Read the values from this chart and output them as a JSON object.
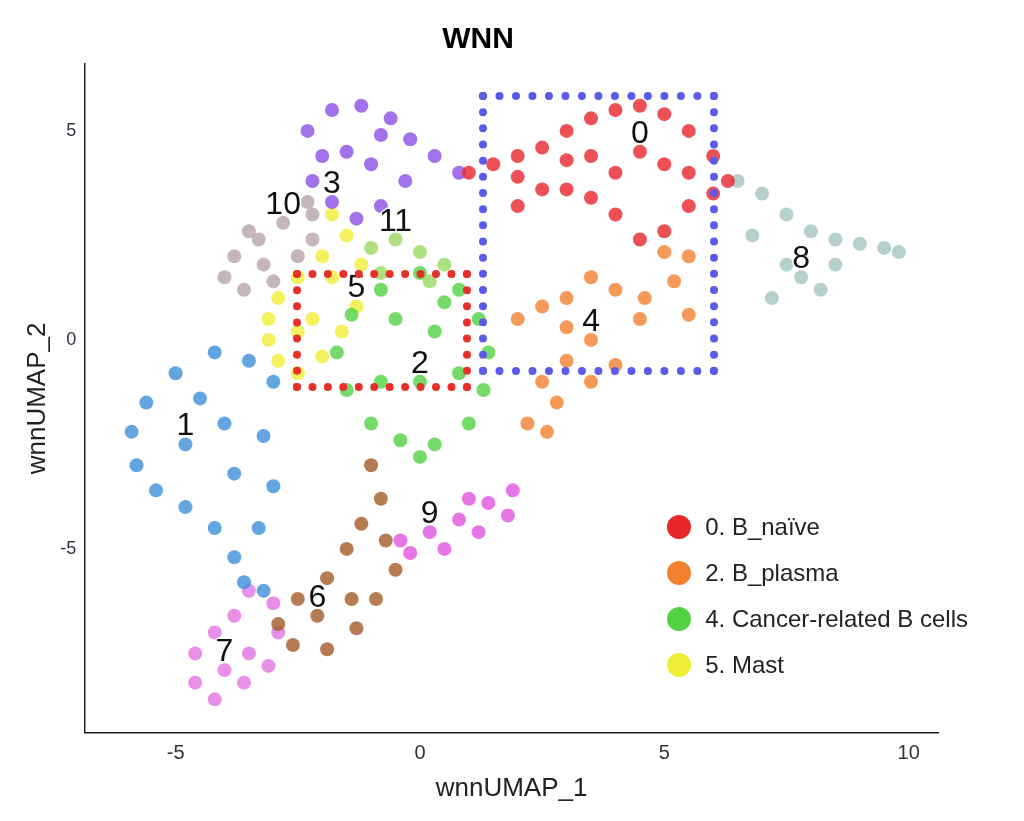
{
  "chart_data": {
    "type": "scatter",
    "title": "WNN",
    "xlabel": "wnnUMAP_1",
    "ylabel": "wnnUMAP_2",
    "xlim": [
      -6.85,
      10.6
    ],
    "ylim": [
      -9.4,
      6.6
    ],
    "xticks": [
      -5,
      0,
      5,
      10
    ],
    "yticks": [
      -5,
      0,
      5
    ],
    "grid": false,
    "legend": "bottom right",
    "marker": "circle",
    "series": [
      {
        "name": "0. B_naïve",
        "color": "#e8262a",
        "x": [
          1.0,
          1.5,
          2.0,
          2.5,
          3.0,
          3.5,
          4.0,
          4.5,
          5.0,
          5.5,
          6.0,
          6.3,
          5.5,
          5.0,
          4.5,
          4.0,
          3.5,
          3.0,
          2.5,
          2.0,
          4.5,
          5.0,
          3.5,
          4.0,
          5.5,
          3.0,
          6.0,
          2.0
        ],
        "values": [
          4.0,
          4.2,
          4.4,
          4.6,
          5.0,
          5.3,
          5.5,
          5.6,
          5.4,
          5.0,
          4.4,
          3.8,
          3.2,
          2.6,
          2.4,
          3.0,
          3.4,
          3.6,
          3.6,
          3.2,
          4.5,
          4.2,
          4.4,
          4.0,
          4.0,
          4.3,
          3.5,
          3.9
        ]
      },
      {
        "color": "#a3c4c0",
        "x": [
          6.5,
          7.0,
          7.5,
          8.0,
          8.5,
          9.0,
          9.5,
          9.8,
          7.8,
          8.2,
          7.5,
          8.5,
          6.8,
          7.2
        ],
        "values": [
          3.8,
          3.5,
          3.0,
          2.6,
          2.4,
          2.3,
          2.2,
          2.1,
          1.5,
          1.2,
          1.8,
          1.8,
          2.5,
          1.0
        ]
      },
      {
        "name": "2. B_plasma",
        "color": "#f3802f",
        "x": [
          5.0,
          5.5,
          5.2,
          4.6,
          4.0,
          3.5,
          3.0,
          2.5,
          2.0,
          3.0,
          3.5,
          4.5,
          5.5,
          3.0,
          2.5,
          2.8,
          2.2,
          2.6,
          4.0,
          3.5
        ],
        "values": [
          2.1,
          2.0,
          1.4,
          1.0,
          1.2,
          1.5,
          1.0,
          0.8,
          0.5,
          0.3,
          0.0,
          0.5,
          0.6,
          -0.5,
          -1.0,
          -1.5,
          -2.0,
          -2.2,
          -0.6,
          -1.0
        ]
      },
      {
        "color": "#8b4fe6",
        "x": [
          -2.3,
          -1.8,
          -1.2,
          -0.6,
          -0.2,
          0.3,
          0.8,
          -0.3,
          -0.8,
          -1.3,
          -1.8,
          -2.2,
          -1.5,
          -1.0,
          -0.8,
          -2.0
        ],
        "values": [
          5.0,
          5.5,
          5.6,
          5.3,
          4.8,
          4.4,
          4.0,
          3.8,
          3.2,
          2.9,
          3.3,
          3.8,
          4.5,
          4.2,
          4.9,
          4.4
        ]
      },
      {
        "color": "#b9a3ab",
        "x": [
          -2.3,
          -2.2,
          -2.8,
          -3.3,
          -3.8,
          -4.0,
          -3.6,
          -3.0,
          -2.5,
          -3.2,
          -3.5,
          -2.2
        ],
        "values": [
          3.3,
          3.0,
          2.8,
          2.4,
          2.0,
          1.5,
          1.2,
          1.4,
          2.0,
          1.8,
          2.6,
          2.4
        ]
      },
      {
        "color": "#9ad860",
        "x": [
          -1.0,
          -0.5,
          0.0,
          0.5,
          -0.8,
          0.2
        ],
        "values": [
          2.2,
          2.4,
          2.1,
          1.8,
          1.6,
          1.4
        ]
      },
      {
        "name": "4. Cancer-related B cells",
        "color": "#52d242",
        "x": [
          -0.8,
          0.0,
          0.8,
          1.2,
          1.4,
          1.3,
          1.0,
          0.3,
          -0.4,
          -1.0,
          -1.5,
          -1.7,
          -1.4,
          -0.5,
          0.3,
          0.0,
          -0.8,
          0.8,
          0.5,
          0.0
        ],
        "values": [
          1.2,
          1.6,
          1.2,
          0.5,
          -0.3,
          -1.2,
          -2.0,
          -2.5,
          -2.4,
          -2.0,
          -1.2,
          -0.3,
          0.6,
          0.5,
          0.2,
          -1.0,
          -1.0,
          -0.8,
          0.9,
          -2.8
        ]
      },
      {
        "name": "5. Mast",
        "color": "#f0ee34",
        "x": [
          -1.8,
          -1.5,
          -2.0,
          -2.5,
          -2.9,
          -3.1,
          -3.1,
          -2.9,
          -2.5,
          -2.0,
          -1.6,
          -1.3,
          -2.2,
          -2.5,
          -1.8,
          -1.2
        ],
        "values": [
          3.0,
          2.5,
          2.0,
          1.5,
          1.0,
          0.5,
          0.0,
          -0.5,
          -0.8,
          -0.4,
          0.2,
          0.8,
          0.5,
          0.2,
          1.5,
          1.8
        ]
      },
      {
        "color": "#3b8fd8",
        "x": [
          -4.2,
          -3.5,
          -3.0,
          -5.0,
          -5.6,
          -5.9,
          -5.8,
          -5.4,
          -4.8,
          -4.2,
          -3.8,
          -3.6,
          -3.2,
          -3.3,
          -3.0,
          -3.2,
          -4.0,
          -4.8,
          -4.5,
          -3.8
        ],
        "values": [
          -0.3,
          -0.5,
          -1.0,
          -0.8,
          -1.5,
          -2.2,
          -3.0,
          -3.6,
          -4.0,
          -4.5,
          -5.2,
          -5.8,
          -6.0,
          -4.5,
          -3.5,
          -2.3,
          -2.0,
          -2.5,
          -1.4,
          -3.2
        ]
      },
      {
        "color": "#e052e0",
        "x": [
          -0.4,
          0.2,
          0.8,
          1.4,
          1.9,
          1.8,
          1.2,
          0.5,
          1.0,
          -0.2
        ],
        "values": [
          -4.8,
          -4.6,
          -4.3,
          -3.9,
          -3.6,
          -4.2,
          -4.6,
          -5.0,
          -3.8,
          -5.1
        ]
      },
      {
        "color": "#a25a28",
        "x": [
          -1.0,
          -0.8,
          -1.2,
          -0.7,
          -0.5,
          -0.9,
          -1.3,
          -1.9,
          -2.6,
          -2.9,
          -2.5,
          -1.9,
          -1.5,
          -2.1,
          -1.4
        ],
        "values": [
          -3.0,
          -3.8,
          -4.4,
          -4.8,
          -5.5,
          -6.2,
          -6.9,
          -7.4,
          -7.3,
          -6.8,
          -6.2,
          -5.7,
          -5.0,
          -6.6,
          -6.2
        ]
      },
      {
        "color": "#e274e2",
        "x": [
          -3.5,
          -3.0,
          -2.9,
          -3.1,
          -3.6,
          -4.2,
          -4.6,
          -4.6,
          -4.2,
          -3.8,
          -3.5,
          -4.0
        ],
        "values": [
          -6.0,
          -6.3,
          -7.0,
          -7.8,
          -8.2,
          -8.6,
          -8.2,
          -7.5,
          -7.0,
          -6.6,
          -7.5,
          -7.9
        ]
      }
    ],
    "annotations": [
      {
        "text": "0",
        "x": 4.5,
        "y": 4.5
      },
      {
        "text": "3",
        "x": -1.8,
        "y": 3.3
      },
      {
        "text": "10",
        "x": -2.8,
        "y": 2.8
      },
      {
        "text": "11",
        "x": -0.5,
        "y": 2.4
      },
      {
        "text": "5",
        "x": -1.3,
        "y": 0.8
      },
      {
        "text": "2",
        "x": 0.0,
        "y": -1.0
      },
      {
        "text": "4",
        "x": 3.5,
        "y": 0.0
      },
      {
        "text": "8",
        "x": 7.8,
        "y": 1.5
      },
      {
        "text": "1",
        "x": -4.8,
        "y": -2.5
      },
      {
        "text": "9",
        "x": 0.2,
        "y": -4.6
      },
      {
        "text": "6",
        "x": -2.1,
        "y": -6.6
      },
      {
        "text": "7",
        "x": -4.0,
        "y": -7.9
      }
    ]
  }
}
